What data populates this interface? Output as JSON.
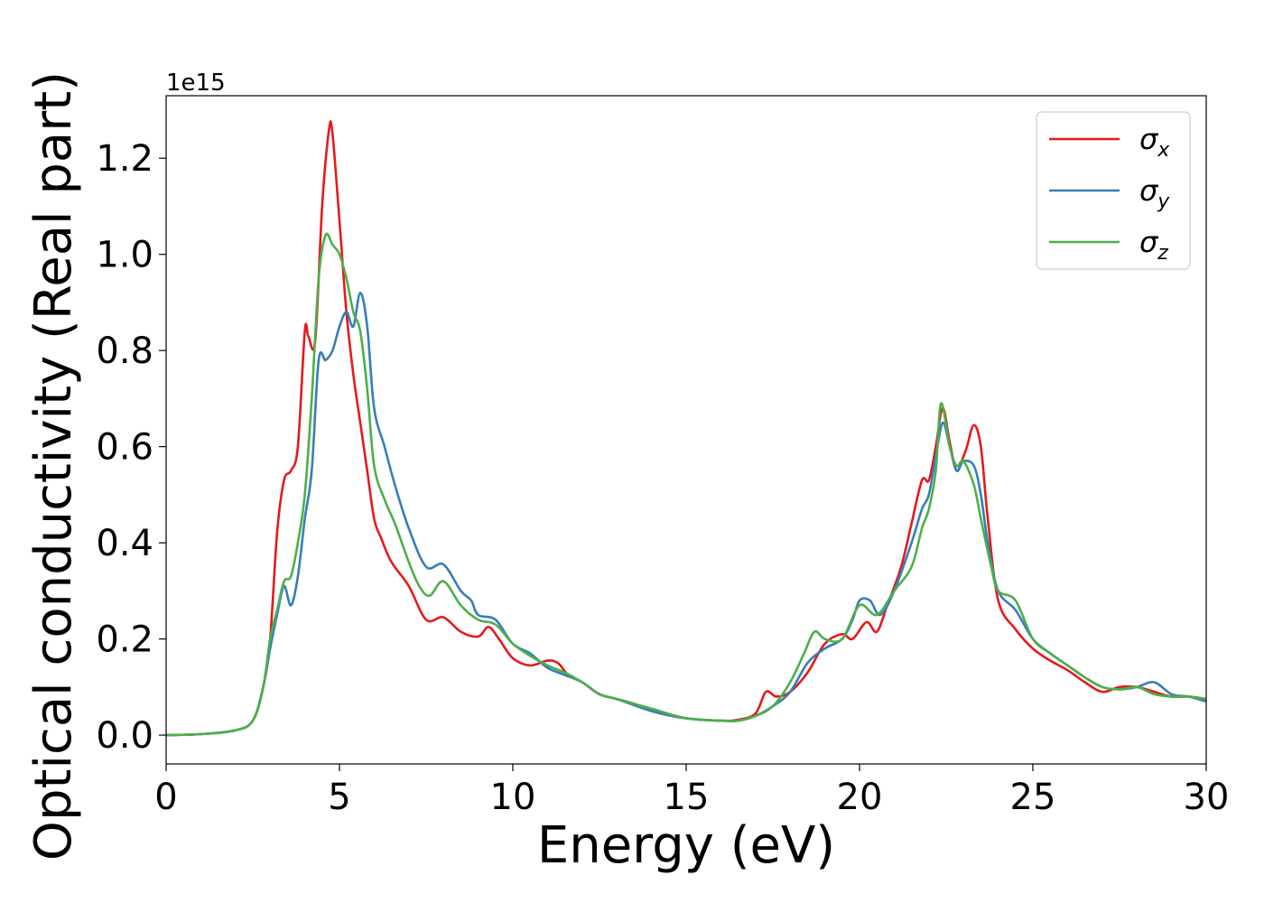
{
  "chart_data": {
    "type": "line",
    "title": "",
    "xlabel": "Energy (eV)",
    "ylabel": "Optical conductivity (Real part)",
    "y_offset_label": "1e15",
    "xlim": [
      0,
      30
    ],
    "ylim": [
      -0.06,
      1.33
    ],
    "x_ticks": [
      0,
      5,
      10,
      15,
      20,
      25,
      30
    ],
    "x_tick_labels": [
      "0",
      "5",
      "10",
      "15",
      "20",
      "25",
      "30"
    ],
    "y_ticks": [
      0.0,
      0.2,
      0.4,
      0.6,
      0.8,
      1.0,
      1.2
    ],
    "y_tick_labels": [
      "0.0",
      "0.2",
      "0.4",
      "0.6",
      "0.8",
      "1.0",
      "1.2"
    ],
    "grid": false,
    "legend_position": "top-right",
    "series": [
      {
        "name": "σx",
        "symbol": "σ",
        "subscript": "x",
        "color": "#e41a1c",
        "x": [
          0,
          1,
          2,
          2.5,
          2.8,
          3.0,
          3.2,
          3.4,
          3.6,
          3.8,
          4.0,
          4.1,
          4.3,
          4.5,
          4.7,
          4.8,
          5.0,
          5.2,
          5.4,
          5.6,
          5.8,
          6.0,
          6.2,
          6.5,
          7.0,
          7.5,
          8.0,
          8.5,
          9.0,
          9.3,
          9.6,
          10.0,
          10.5,
          11.0,
          11.3,
          11.6,
          12.0,
          12.5,
          13.0,
          13.5,
          14.0,
          15.0,
          16.0,
          16.5,
          17.0,
          17.3,
          17.6,
          18.0,
          18.5,
          19.0,
          19.5,
          19.8,
          20.2,
          20.5,
          20.8,
          21.2,
          21.5,
          21.8,
          22.0,
          22.2,
          22.4,
          22.6,
          22.8,
          23.0,
          23.1,
          23.3,
          23.5,
          23.7,
          24.0,
          24.5,
          25.0,
          25.5,
          26.0,
          26.5,
          27.0,
          27.5,
          28.0,
          28.5,
          29.0,
          29.5,
          30.0
        ],
        "y": [
          0.0,
          0.002,
          0.01,
          0.03,
          0.1,
          0.2,
          0.42,
          0.53,
          0.55,
          0.6,
          0.84,
          0.83,
          0.82,
          1.1,
          1.26,
          1.25,
          1.07,
          0.88,
          0.75,
          0.65,
          0.55,
          0.45,
          0.41,
          0.36,
          0.31,
          0.24,
          0.245,
          0.215,
          0.205,
          0.225,
          0.2,
          0.16,
          0.145,
          0.155,
          0.15,
          0.125,
          0.11,
          0.085,
          0.075,
          0.065,
          0.05,
          0.035,
          0.03,
          0.032,
          0.045,
          0.09,
          0.08,
          0.09,
          0.13,
          0.19,
          0.21,
          0.2,
          0.235,
          0.215,
          0.27,
          0.35,
          0.44,
          0.53,
          0.53,
          0.6,
          0.68,
          0.61,
          0.55,
          0.58,
          0.6,
          0.645,
          0.6,
          0.45,
          0.28,
          0.22,
          0.18,
          0.155,
          0.135,
          0.11,
          0.09,
          0.1,
          0.1,
          0.09,
          0.08,
          0.08,
          0.075
        ]
      },
      {
        "name": "σy",
        "symbol": "σ",
        "subscript": "y",
        "color": "#377eb8",
        "x": [
          0,
          1,
          2,
          2.5,
          2.8,
          3.0,
          3.2,
          3.4,
          3.6,
          3.8,
          4.0,
          4.2,
          4.4,
          4.6,
          4.8,
          5.0,
          5.2,
          5.4,
          5.6,
          5.8,
          6.0,
          6.3,
          6.6,
          7.0,
          7.5,
          8.0,
          8.5,
          8.8,
          9.0,
          9.5,
          10.0,
          10.5,
          11.0,
          11.5,
          12.0,
          12.5,
          13.0,
          14.0,
          15.0,
          16.0,
          16.5,
          17.0,
          17.5,
          18.0,
          18.5,
          19.0,
          19.5,
          19.8,
          20.0,
          20.3,
          20.6,
          21.0,
          21.5,
          21.8,
          22.0,
          22.2,
          22.4,
          22.6,
          22.8,
          23.0,
          23.3,
          23.5,
          23.7,
          24.0,
          24.5,
          25.0,
          25.5,
          26.0,
          26.5,
          27.0,
          27.5,
          28.0,
          28.5,
          29.0,
          29.5,
          30.0
        ],
        "y": [
          0.0,
          0.002,
          0.01,
          0.03,
          0.1,
          0.18,
          0.25,
          0.31,
          0.27,
          0.33,
          0.45,
          0.55,
          0.78,
          0.78,
          0.8,
          0.85,
          0.88,
          0.85,
          0.92,
          0.85,
          0.68,
          0.6,
          0.52,
          0.43,
          0.35,
          0.355,
          0.3,
          0.28,
          0.25,
          0.24,
          0.19,
          0.17,
          0.14,
          0.125,
          0.11,
          0.085,
          0.075,
          0.05,
          0.035,
          0.03,
          0.03,
          0.04,
          0.06,
          0.09,
          0.15,
          0.18,
          0.2,
          0.24,
          0.28,
          0.28,
          0.25,
          0.3,
          0.4,
          0.47,
          0.5,
          0.58,
          0.65,
          0.6,
          0.55,
          0.57,
          0.56,
          0.5,
          0.4,
          0.3,
          0.26,
          0.2,
          0.17,
          0.145,
          0.12,
          0.1,
          0.095,
          0.1,
          0.11,
          0.085,
          0.08,
          0.07
        ]
      },
      {
        "name": "σz",
        "symbol": "σ",
        "subscript": "z",
        "color": "#4daf4a",
        "x": [
          0,
          1,
          2,
          2.5,
          2.8,
          3.0,
          3.2,
          3.4,
          3.6,
          3.8,
          4.0,
          4.2,
          4.4,
          4.6,
          4.8,
          5.0,
          5.2,
          5.4,
          5.6,
          5.8,
          6.0,
          6.3,
          6.6,
          7.0,
          7.3,
          7.6,
          8.0,
          8.5,
          9.0,
          9.5,
          10.0,
          10.5,
          11.0,
          11.5,
          12.0,
          12.5,
          13.0,
          14.0,
          15.0,
          16.0,
          16.5,
          17.0,
          17.5,
          18.0,
          18.4,
          18.7,
          19.0,
          19.5,
          20.0,
          20.5,
          21.0,
          21.5,
          21.8,
          22.0,
          22.2,
          22.35,
          22.6,
          22.8,
          23.0,
          23.3,
          23.5,
          23.8,
          24.0,
          24.5,
          25.0,
          25.5,
          26.0,
          26.5,
          27.0,
          27.5,
          28.0,
          28.5,
          29.0,
          29.5,
          30.0
        ],
        "y": [
          0.0,
          0.002,
          0.01,
          0.03,
          0.1,
          0.2,
          0.26,
          0.32,
          0.33,
          0.4,
          0.5,
          0.7,
          0.95,
          1.04,
          1.02,
          1.0,
          0.95,
          0.88,
          0.84,
          0.72,
          0.56,
          0.49,
          0.44,
          0.36,
          0.31,
          0.29,
          0.32,
          0.27,
          0.24,
          0.23,
          0.19,
          0.165,
          0.145,
          0.13,
          0.11,
          0.085,
          0.075,
          0.055,
          0.035,
          0.03,
          0.03,
          0.04,
          0.06,
          0.11,
          0.17,
          0.215,
          0.2,
          0.2,
          0.27,
          0.25,
          0.3,
          0.35,
          0.43,
          0.47,
          0.55,
          0.69,
          0.6,
          0.56,
          0.57,
          0.52,
          0.45,
          0.35,
          0.3,
          0.28,
          0.2,
          0.17,
          0.145,
          0.12,
          0.1,
          0.095,
          0.1,
          0.085,
          0.08,
          0.08,
          0.075
        ]
      }
    ]
  }
}
